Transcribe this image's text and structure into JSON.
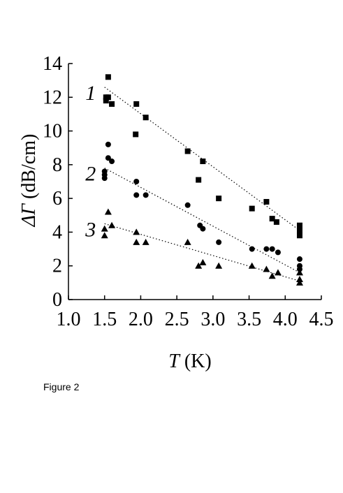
{
  "chart_data": {
    "type": "scatter",
    "xlabel": {
      "symbol": "T",
      "unit": "(K)"
    },
    "ylabel": {
      "symbol": "ΔΓ",
      "unit": "(dB/cm)"
    },
    "xlim": [
      1.0,
      4.5
    ],
    "ylim": [
      0,
      14
    ],
    "xticks": [
      1.0,
      1.5,
      2.0,
      2.5,
      3.0,
      3.5,
      4.0,
      4.5
    ],
    "xtick_labels": [
      "1.0",
      "1.5",
      "2.0",
      "2.5",
      "3.0",
      "3.5",
      "4.0",
      "4.5"
    ],
    "yticks": [
      0,
      2,
      4,
      6,
      8,
      10,
      12,
      14
    ],
    "ytick_labels": [
      "0",
      "2",
      "4",
      "6",
      "8",
      "10",
      "12",
      "14"
    ],
    "grid": false,
    "series": [
      {
        "name": "1",
        "marker": "square",
        "points": [
          [
            1.55,
            13.2
          ],
          [
            1.52,
            12.0
          ],
          [
            1.55,
            12.0
          ],
          [
            1.52,
            11.8
          ],
          [
            1.6,
            11.6
          ],
          [
            1.94,
            11.6
          ],
          [
            1.93,
            9.8
          ],
          [
            2.07,
            10.8
          ],
          [
            2.65,
            8.8
          ],
          [
            2.8,
            7.1
          ],
          [
            2.86,
            8.2
          ],
          [
            3.08,
            6.0
          ],
          [
            3.54,
            5.4
          ],
          [
            3.74,
            5.8
          ],
          [
            3.82,
            4.8
          ],
          [
            3.88,
            4.6
          ],
          [
            4.2,
            4.4
          ],
          [
            4.2,
            4.1
          ],
          [
            4.2,
            3.8
          ]
        ],
        "fit": [
          [
            1.5,
            12.6
          ],
          [
            4.2,
            4.1
          ]
        ]
      },
      {
        "name": "2",
        "marker": "circle",
        "points": [
          [
            1.55,
            9.2
          ],
          [
            1.55,
            8.4
          ],
          [
            1.6,
            8.2
          ],
          [
            1.5,
            7.6
          ],
          [
            1.5,
            7.4
          ],
          [
            1.5,
            7.2
          ],
          [
            1.94,
            7.0
          ],
          [
            1.94,
            6.2
          ],
          [
            2.07,
            6.2
          ],
          [
            2.65,
            5.6
          ],
          [
            2.82,
            4.4
          ],
          [
            2.86,
            4.2
          ],
          [
            3.08,
            3.4
          ],
          [
            3.54,
            3.0
          ],
          [
            3.74,
            3.0
          ],
          [
            3.82,
            3.0
          ],
          [
            3.9,
            2.8
          ],
          [
            4.2,
            2.4
          ],
          [
            4.2,
            2.0
          ],
          [
            4.2,
            1.8
          ]
        ],
        "fit": [
          [
            1.5,
            7.8
          ],
          [
            4.2,
            1.6
          ]
        ]
      },
      {
        "name": "3",
        "marker": "triangle",
        "points": [
          [
            1.55,
            5.2
          ],
          [
            1.6,
            4.4
          ],
          [
            1.5,
            4.2
          ],
          [
            1.5,
            3.8
          ],
          [
            1.94,
            4.0
          ],
          [
            1.94,
            3.4
          ],
          [
            2.07,
            3.4
          ],
          [
            2.65,
            3.4
          ],
          [
            2.8,
            2.0
          ],
          [
            2.86,
            2.2
          ],
          [
            3.08,
            2.0
          ],
          [
            3.54,
            2.0
          ],
          [
            3.74,
            1.8
          ],
          [
            3.82,
            1.4
          ],
          [
            3.9,
            1.6
          ],
          [
            4.2,
            1.6
          ],
          [
            4.2,
            1.2
          ],
          [
            4.2,
            1.0
          ]
        ],
        "fit": [
          [
            1.5,
            4.5
          ],
          [
            4.2,
            1.1
          ]
        ]
      }
    ]
  },
  "figure_caption": "Figure 2"
}
